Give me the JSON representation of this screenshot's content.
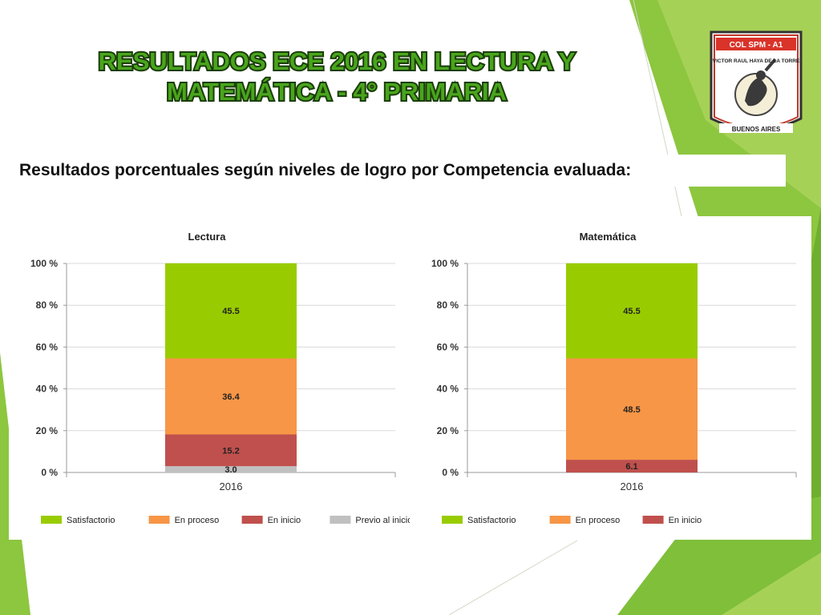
{
  "header": {
    "title_line1": "RESULTADOS ECE 2016 EN LECTURA Y",
    "title_line2": "MATEMÁTICA - 4° PRIMARIA",
    "subtitle": "Resultados porcentuales según niveles de logro por Competencia evaluada:"
  },
  "logo": {
    "top_text": "COL SPM - A1",
    "arc_text": "VICTOR RAUL HAYA DE LA TORRE",
    "bottom_text": "BUENOS AIRES"
  },
  "colors": {
    "satisfactorio": "#99cc00",
    "en_proceso": "#f79646",
    "en_inicio": "#c0504d",
    "previo_al_inicio": "#c0c0c0",
    "title_green": "#49a51c",
    "background_green": "#8dc63f"
  },
  "chart_data": [
    {
      "type": "bar",
      "stacked": true,
      "title": "Lectura",
      "categories": [
        "2016"
      ],
      "ylim": [
        0,
        100
      ],
      "yticks": [
        "0 %",
        "20 %",
        "40 %",
        "60 %",
        "80 %",
        "100 %"
      ],
      "grid": true,
      "legend_position": "bottom",
      "series": [
        {
          "name": "Previo al inicio",
          "values": [
            3.0
          ],
          "label": "3.0",
          "color": "#c0c0c0"
        },
        {
          "name": "En inicio",
          "values": [
            15.2
          ],
          "label": "15.2",
          "color": "#c0504d"
        },
        {
          "name": "En proceso",
          "values": [
            36.4
          ],
          "label": "36.4",
          "color": "#f79646"
        },
        {
          "name": "Satisfactorio",
          "values": [
            45.5
          ],
          "label": "45.5",
          "color": "#99cc00"
        }
      ],
      "legend": [
        "Satisfactorio",
        "En proceso",
        "En inicio",
        "Previo al inicio"
      ]
    },
    {
      "type": "bar",
      "stacked": true,
      "title": "Matemática",
      "categories": [
        "2016"
      ],
      "ylim": [
        0,
        100
      ],
      "yticks": [
        "0 %",
        "20 %",
        "40 %",
        "60 %",
        "80 %",
        "100 %"
      ],
      "grid": true,
      "legend_position": "bottom",
      "series": [
        {
          "name": "En inicio",
          "values": [
            6.1
          ],
          "label": "6.1",
          "color": "#c0504d"
        },
        {
          "name": "En proceso",
          "values": [
            48.5
          ],
          "label": "48.5",
          "color": "#f79646"
        },
        {
          "name": "Satisfactorio",
          "values": [
            45.5
          ],
          "label": "45.5",
          "color": "#99cc00"
        }
      ],
      "legend": [
        "Satisfactorio",
        "En proceso",
        "En inicio"
      ]
    }
  ]
}
